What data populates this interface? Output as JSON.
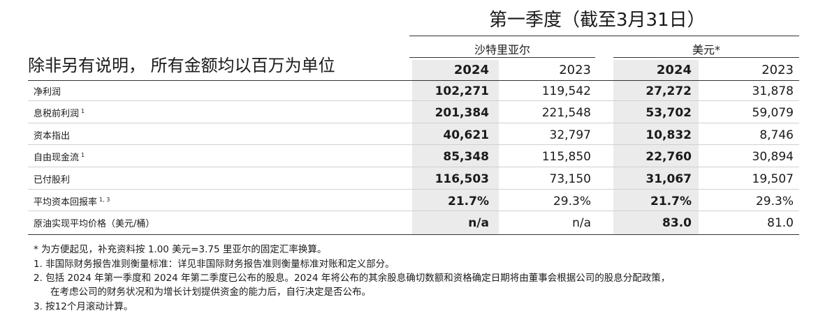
{
  "header": {
    "period_title": "第一季度（截至3月31日）",
    "unit_note": "除非另有说明， 所有金额均以百万为单位",
    "groups": [
      {
        "label": "沙特里亚尔",
        "years": [
          "2024",
          "2023"
        ]
      },
      {
        "label": "美元*",
        "years": [
          "2024",
          "2023"
        ]
      }
    ]
  },
  "rows": [
    {
      "label": "净利润",
      "sup": "",
      "values": [
        "102,271",
        "119,542",
        "27,272",
        "31,878"
      ]
    },
    {
      "label": "息税前利润",
      "sup": "1",
      "values": [
        "201,384",
        "221,548",
        "53,702",
        "59,079"
      ]
    },
    {
      "label": "资本指出",
      "sup": "",
      "values": [
        "40,621",
        "32,797",
        "10,832",
        "8,746"
      ]
    },
    {
      "label": "自由现金流",
      "sup": "1",
      "values": [
        "85,348",
        "115,850",
        "22,760",
        "30,894"
      ]
    },
    {
      "label": "已付股利",
      "sup": "",
      "values": [
        "116,503",
        "73,150",
        "31,067",
        "19,507"
      ]
    },
    {
      "label": "平均资本回报率",
      "sup": "1, 3",
      "values": [
        "21.7%",
        "29.3%",
        "21.7%",
        "29.3%"
      ]
    },
    {
      "label": "原油实现平均价格（美元/桶）",
      "sup": "",
      "values": [
        "n/a",
        "n/a",
        "83.0",
        "81.0"
      ]
    }
  ],
  "footnotes": [
    "* 为方便起见，补充资料按 1.00 美元=3.75 里亚尔的固定汇率换算。",
    "1. 非国际财务报告准则衡量标准：详见非国际财务报告准则衡量标准对账和定义部分。",
    "2. 包括 2024 年第一季度和 2024 年第二季度已公布的股息。2024 年将公布的其余股息确切数额和资格确定日期将由董事会根据公司的股息分配政策，",
    "在考虑公司的财务状况和为增长计划提供资金的能力后，自行决定是否公布。",
    "3. 按12个月滚动计算。"
  ]
}
